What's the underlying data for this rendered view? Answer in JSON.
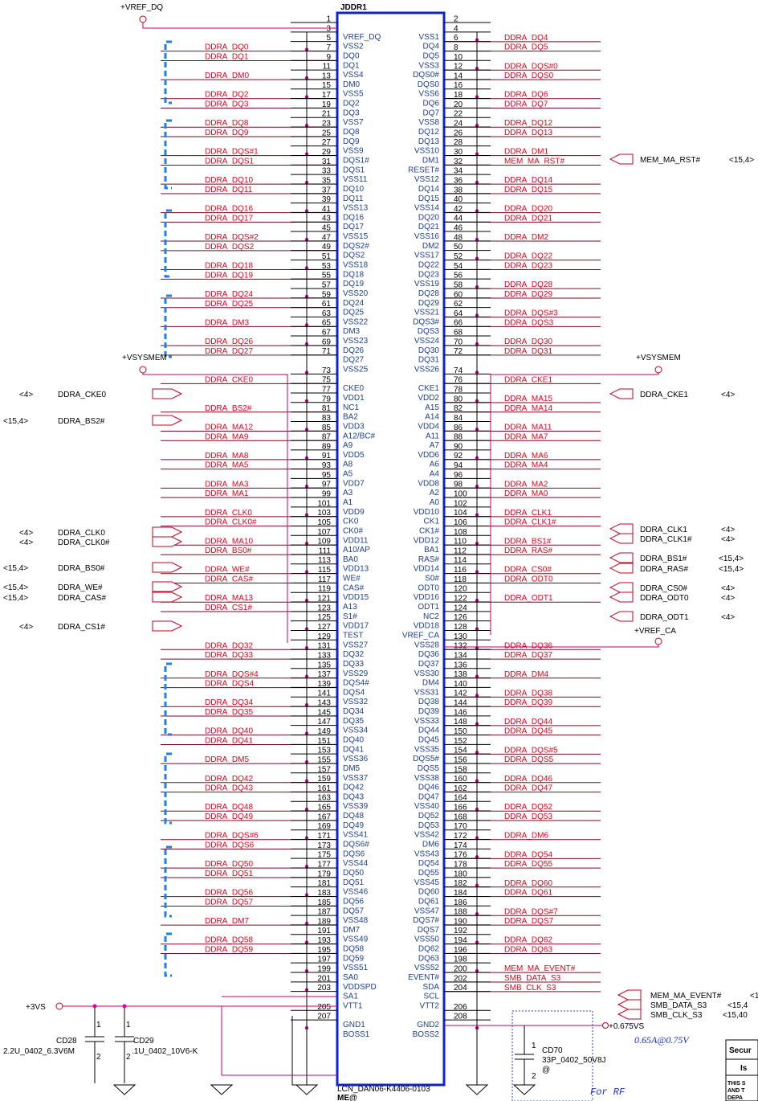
{
  "connector": {
    "refdes": "JDDR1",
    "part": "LCN_DAN06-K4406-0103",
    "variant": "ME@"
  },
  "top_left_rail": "+VREF_DQ",
  "left_pins": [
    {
      "num": "1",
      "name": "",
      "net": ""
    },
    {
      "num": "3",
      "name": "VREF_DQ",
      "net": ""
    },
    {
      "num": "5",
      "name": "VSS2",
      "net": "DDRA_DQ0"
    },
    {
      "num": "7",
      "name": "DQ0",
      "net": "DDRA_DQ1"
    },
    {
      "num": "9",
      "name": "DQ1",
      "net": ""
    },
    {
      "num": "11",
      "name": "VSS4",
      "net": "DDRA_DM0"
    },
    {
      "num": "13",
      "name": "DM0",
      "net": ""
    },
    {
      "num": "15",
      "name": "VSS5",
      "net": "DDRA_DQ2"
    },
    {
      "num": "17",
      "name": "DQ2",
      "net": "DDRA_DQ3"
    },
    {
      "num": "19",
      "name": "DQ3",
      "net": ""
    },
    {
      "num": "21",
      "name": "VSS7",
      "net": "DDRA_DQ8"
    },
    {
      "num": "23",
      "name": "DQ8",
      "net": "DDRA_DQ9"
    },
    {
      "num": "25",
      "name": "DQ9",
      "net": ""
    },
    {
      "num": "27",
      "name": "VSS9",
      "net": "DDRA_DQS#1"
    },
    {
      "num": "29",
      "name": "DQS1#",
      "net": "DDRA_DQS1"
    },
    {
      "num": "31",
      "name": "DQS1",
      "net": ""
    },
    {
      "num": "33",
      "name": "VSS11",
      "net": "DDRA_DQ10"
    },
    {
      "num": "35",
      "name": "DQ10",
      "net": "DDRA_DQ11"
    },
    {
      "num": "37",
      "name": "DQ11",
      "net": ""
    },
    {
      "num": "39",
      "name": "VSS13",
      "net": "DDRA_DQ16"
    },
    {
      "num": "41",
      "name": "DQ16",
      "net": "DDRA_DQ17"
    },
    {
      "num": "43",
      "name": "DQ17",
      "net": ""
    },
    {
      "num": "45",
      "name": "VSS15",
      "net": "DDRA_DQS#2"
    },
    {
      "num": "47",
      "name": "DQS2#",
      "net": "DDRA_DQS2"
    },
    {
      "num": "49",
      "name": "DQS2",
      "net": ""
    },
    {
      "num": "51",
      "name": "VSS18",
      "net": "DDRA_DQ18"
    },
    {
      "num": "53",
      "name": "DQ18",
      "net": "DDRA_DQ19"
    },
    {
      "num": "55",
      "name": "DQ19",
      "net": ""
    },
    {
      "num": "57",
      "name": "VSS20",
      "net": "DDRA_DQ24"
    },
    {
      "num": "59",
      "name": "DQ24",
      "net": "DDRA_DQ25"
    },
    {
      "num": "61",
      "name": "DQ25",
      "net": ""
    },
    {
      "num": "63",
      "name": "VSS22",
      "net": "DDRA_DM3"
    },
    {
      "num": "65",
      "name": "DM3",
      "net": ""
    },
    {
      "num": "67",
      "name": "VSS23",
      "net": "DDRA_DQ26"
    },
    {
      "num": "69",
      "name": "DQ26",
      "net": "DDRA_DQ27"
    },
    {
      "num": "71",
      "name": "DQ27",
      "net": ""
    },
    {
      "num": "",
      "name": "VSS25",
      "net": ""
    },
    {
      "num": "73",
      "name": "",
      "net": "DDRA_CKE0"
    },
    {
      "num": "75",
      "name": "CKE0",
      "net": ""
    },
    {
      "num": "77",
      "name": "VDD1",
      "net": ""
    },
    {
      "num": "79",
      "name": "NC1",
      "net": "DDRA_BS2#"
    },
    {
      "num": "81",
      "name": "BA2",
      "net": ""
    },
    {
      "num": "83",
      "name": "VDD3",
      "net": "DDRA_MA12"
    },
    {
      "num": "85",
      "name": "A12/BC#",
      "net": "DDRA_MA9"
    },
    {
      "num": "87",
      "name": "A9",
      "net": ""
    },
    {
      "num": "89",
      "name": "VDD5",
      "net": "DDRA_MA8"
    },
    {
      "num": "91",
      "name": "A8",
      "net": "DDRA_MA5"
    },
    {
      "num": "93",
      "name": "A5",
      "net": ""
    },
    {
      "num": "95",
      "name": "VDD7",
      "net": "DDRA_MA3"
    },
    {
      "num": "97",
      "name": "A3",
      "net": "DDRA_MA1"
    },
    {
      "num": "99",
      "name": "A1",
      "net": ""
    },
    {
      "num": "101",
      "name": "VDD9",
      "net": "DDRA_CLK0"
    },
    {
      "num": "103",
      "name": "CK0",
      "net": "DDRA_CLK0#"
    },
    {
      "num": "105",
      "name": "CK0#",
      "net": ""
    },
    {
      "num": "107",
      "name": "VDD11",
      "net": "DDRA_MA10"
    },
    {
      "num": "109",
      "name": "A10/AP",
      "net": "DDRA_BS0#"
    },
    {
      "num": "111",
      "name": "BA0",
      "net": ""
    },
    {
      "num": "113",
      "name": "VDD13",
      "net": "DDRA_WE#"
    },
    {
      "num": "115",
      "name": "WE#",
      "net": "DDRA_CAS#"
    },
    {
      "num": "117",
      "name": "CAS#",
      "net": ""
    },
    {
      "num": "119",
      "name": "VDD15",
      "net": "DDRA_MA13"
    },
    {
      "num": "121",
      "name": "A13",
      "net": "DDRA_CS1#"
    },
    {
      "num": "123",
      "name": "S1#",
      "net": ""
    },
    {
      "num": "125",
      "name": "VDD17",
      "net": ""
    },
    {
      "num": "127",
      "name": "TEST",
      "net": ""
    },
    {
      "num": "129",
      "name": "VSS27",
      "net": "DDRA_DQ32"
    },
    {
      "num": "131",
      "name": "DQ32",
      "net": "DDRA_DQ33"
    },
    {
      "num": "133",
      "name": "DQ33",
      "net": ""
    },
    {
      "num": "135",
      "name": "VSS29",
      "net": "DDRA_DQS#4"
    },
    {
      "num": "137",
      "name": "DQS4#",
      "net": "DDRA_DQS4"
    },
    {
      "num": "139",
      "name": "DQS4",
      "net": ""
    },
    {
      "num": "141",
      "name": "VSS32",
      "net": "DDRA_DQ34"
    },
    {
      "num": "143",
      "name": "DQ34",
      "net": "DDRA_DQ35"
    },
    {
      "num": "145",
      "name": "DQ35",
      "net": ""
    },
    {
      "num": "147",
      "name": "VSS34",
      "net": "DDRA_DQ40"
    },
    {
      "num": "149",
      "name": "DQ40",
      "net": "DDRA_DQ41"
    },
    {
      "num": "151",
      "name": "DQ41",
      "net": ""
    },
    {
      "num": "153",
      "name": "VSS36",
      "net": "DDRA_DM5"
    },
    {
      "num": "155",
      "name": "DM5",
      "net": ""
    },
    {
      "num": "157",
      "name": "VSS37",
      "net": "DDRA_DQ42"
    },
    {
      "num": "159",
      "name": "DQ42",
      "net": "DDRA_DQ43"
    },
    {
      "num": "161",
      "name": "DQ43",
      "net": ""
    },
    {
      "num": "163",
      "name": "VSS39",
      "net": "DDRA_DQ48"
    },
    {
      "num": "165",
      "name": "DQ48",
      "net": "DDRA_DQ49"
    },
    {
      "num": "167",
      "name": "DQ49",
      "net": ""
    },
    {
      "num": "169",
      "name": "VSS41",
      "net": "DDRA_DQS#6"
    },
    {
      "num": "171",
      "name": "DQS6#",
      "net": "DDRA_DQS6"
    },
    {
      "num": "173",
      "name": "DQS6",
      "net": ""
    },
    {
      "num": "175",
      "name": "VSS44",
      "net": "DDRA_DQ50"
    },
    {
      "num": "177",
      "name": "DQ50",
      "net": "DDRA_DQ51"
    },
    {
      "num": "179",
      "name": "DQ51",
      "net": ""
    },
    {
      "num": "181",
      "name": "VSS46",
      "net": "DDRA_DQ56"
    },
    {
      "num": "183",
      "name": "DQ56",
      "net": "DDRA_DQ57"
    },
    {
      "num": "185",
      "name": "DQ57",
      "net": ""
    },
    {
      "num": "187",
      "name": "VSS48",
      "net": "DDRA_DM7"
    },
    {
      "num": "189",
      "name": "DM7",
      "net": ""
    },
    {
      "num": "191",
      "name": "VSS49",
      "net": "DDRA_DQ58"
    },
    {
      "num": "193",
      "name": "DQ58",
      "net": "DDRA_DQ59"
    },
    {
      "num": "195",
      "name": "DQ59",
      "net": ""
    },
    {
      "num": "197",
      "name": "VSS51",
      "net": ""
    },
    {
      "num": "199",
      "name": "SA0",
      "net": ""
    },
    {
      "num": "201",
      "name": "VDDSPD",
      "net": ""
    },
    {
      "num": "203",
      "name": "SA1",
      "net": ""
    },
    {
      "num": "",
      "name": "VTT1",
      "net": ""
    },
    {
      "num": "205",
      "name": "",
      "net": ""
    },
    {
      "num": "207",
      "name": "GND1",
      "net": ""
    },
    {
      "num": "",
      "name": "BOSS1",
      "net": ""
    }
  ],
  "right_pins": [
    {
      "num": "2",
      "name": "",
      "net": ""
    },
    {
      "num": "4",
      "name": "VSS1",
      "net": "DDRA_DQ4"
    },
    {
      "num": "6",
      "name": "DQ4",
      "net": "DDRA_DQ5"
    },
    {
      "num": "8",
      "name": "DQ5",
      "net": ""
    },
    {
      "num": "10",
      "name": "VSS3",
      "net": "DDRA_DQS#0"
    },
    {
      "num": "12",
      "name": "DQS0#",
      "net": "DDRA_DQS0"
    },
    {
      "num": "14",
      "name": "DQS0",
      "net": ""
    },
    {
      "num": "16",
      "name": "VSS6",
      "net": "DDRA_DQ6"
    },
    {
      "num": "18",
      "name": "DQ6",
      "net": "DDRA_DQ7"
    },
    {
      "num": "20",
      "name": "DQ7",
      "net": ""
    },
    {
      "num": "22",
      "name": "VSS8",
      "net": "DDRA_DQ12"
    },
    {
      "num": "24",
      "name": "DQ12",
      "net": "DDRA_DQ13"
    },
    {
      "num": "26",
      "name": "DQ13",
      "net": ""
    },
    {
      "num": "28",
      "name": "VSS10",
      "net": "DDRA_DM1"
    },
    {
      "num": "30",
      "name": "DM1",
      "net": "MEM_MA_RST#"
    },
    {
      "num": "32",
      "name": "RESET#",
      "net": ""
    },
    {
      "num": "34",
      "name": "VSS12",
      "net": "DDRA_DQ14"
    },
    {
      "num": "36",
      "name": "DQ14",
      "net": "DDRA_DQ15"
    },
    {
      "num": "38",
      "name": "DQ15",
      "net": ""
    },
    {
      "num": "40",
      "name": "VSS14",
      "net": "DDRA_DQ20"
    },
    {
      "num": "42",
      "name": "DQ20",
      "net": "DDRA_DQ21"
    },
    {
      "num": "44",
      "name": "DQ21",
      "net": ""
    },
    {
      "num": "46",
      "name": "VSS16",
      "net": "DDRA_DM2"
    },
    {
      "num": "48",
      "name": "DM2",
      "net": ""
    },
    {
      "num": "50",
      "name": "VSS17",
      "net": "DDRA_DQ22"
    },
    {
      "num": "52",
      "name": "DQ22",
      "net": "DDRA_DQ23"
    },
    {
      "num": "54",
      "name": "DQ23",
      "net": ""
    },
    {
      "num": "56",
      "name": "VSS19",
      "net": "DDRA_DQ28"
    },
    {
      "num": "58",
      "name": "DQ28",
      "net": "DDRA_DQ29"
    },
    {
      "num": "60",
      "name": "DQ29",
      "net": ""
    },
    {
      "num": "62",
      "name": "VSS21",
      "net": "DDRA_DQS#3"
    },
    {
      "num": "64",
      "name": "DQS3#",
      "net": "DDRA_DQS3"
    },
    {
      "num": "66",
      "name": "DQS3",
      "net": ""
    },
    {
      "num": "68",
      "name": "VSS24",
      "net": "DDRA_DQ30"
    },
    {
      "num": "70",
      "name": "DQ30",
      "net": "DDRA_DQ31"
    },
    {
      "num": "72",
      "name": "DQ31",
      "net": ""
    },
    {
      "num": "",
      "name": "VSS26",
      "net": ""
    },
    {
      "num": "74",
      "name": "",
      "net": "DDRA_CKE1"
    },
    {
      "num": "76",
      "name": "CKE1",
      "net": ""
    },
    {
      "num": "78",
      "name": "VDD2",
      "net": "DDRA_MA15"
    },
    {
      "num": "80",
      "name": "A15",
      "net": "DDRA_MA14"
    },
    {
      "num": "82",
      "name": "A14",
      "net": ""
    },
    {
      "num": "84",
      "name": "VDD4",
      "net": "DDRA_MA11"
    },
    {
      "num": "86",
      "name": "A11",
      "net": "DDRA_MA7"
    },
    {
      "num": "88",
      "name": "A7",
      "net": ""
    },
    {
      "num": "90",
      "name": "VDD6",
      "net": "DDRA_MA6"
    },
    {
      "num": "92",
      "name": "A6",
      "net": "DDRA_MA4"
    },
    {
      "num": "94",
      "name": "A4",
      "net": ""
    },
    {
      "num": "96",
      "name": "VDD8",
      "net": "DDRA_MA2"
    },
    {
      "num": "98",
      "name": "A2",
      "net": "DDRA_MA0"
    },
    {
      "num": "100",
      "name": "A0",
      "net": ""
    },
    {
      "num": "102",
      "name": "VDD10",
      "net": "DDRA_CLK1"
    },
    {
      "num": "104",
      "name": "CK1",
      "net": "DDRA_CLK1#"
    },
    {
      "num": "106",
      "name": "CK1#",
      "net": ""
    },
    {
      "num": "108",
      "name": "VDD12",
      "net": "DDRA_BS1#"
    },
    {
      "num": "110",
      "name": "BA1",
      "net": "DDRA_RAS#"
    },
    {
      "num": "112",
      "name": "RAS#",
      "net": ""
    },
    {
      "num": "114",
      "name": "VDD14",
      "net": "DDRA_CS0#"
    },
    {
      "num": "116",
      "name": "S0#",
      "net": "DDRA_ODT0"
    },
    {
      "num": "118",
      "name": "ODT0",
      "net": ""
    },
    {
      "num": "120",
      "name": "VDD16",
      "net": "DDRA_ODT1"
    },
    {
      "num": "122",
      "name": "ODT1",
      "net": ""
    },
    {
      "num": "124",
      "name": "NC2",
      "net": ""
    },
    {
      "num": "126",
      "name": "VDD18",
      "net": ""
    },
    {
      "num": "128",
      "name": "VREF_CA",
      "net": ""
    },
    {
      "num": "130",
      "name": "VSS28",
      "net": "DDRA_DQ36"
    },
    {
      "num": "132",
      "name": "DQ36",
      "net": "DDRA_DQ37"
    },
    {
      "num": "134",
      "name": "DQ37",
      "net": ""
    },
    {
      "num": "136",
      "name": "VSS30",
      "net": "DDRA_DM4"
    },
    {
      "num": "138",
      "name": "DM4",
      "net": ""
    },
    {
      "num": "140",
      "name": "VSS31",
      "net": "DDRA_DQ38"
    },
    {
      "num": "142",
      "name": "DQ38",
      "net": "DDRA_DQ39"
    },
    {
      "num": "144",
      "name": "DQ39",
      "net": ""
    },
    {
      "num": "146",
      "name": "VSS33",
      "net": "DDRA_DQ44"
    },
    {
      "num": "148",
      "name": "DQ44",
      "net": "DDRA_DQ45"
    },
    {
      "num": "150",
      "name": "DQ45",
      "net": ""
    },
    {
      "num": "152",
      "name": "VSS35",
      "net": "DDRA_DQS#5"
    },
    {
      "num": "154",
      "name": "DQS5#",
      "net": "DDRA_DQS5"
    },
    {
      "num": "156",
      "name": "DQS5",
      "net": ""
    },
    {
      "num": "158",
      "name": "VSS38",
      "net": "DDRA_DQ46"
    },
    {
      "num": "160",
      "name": "DQ46",
      "net": "DDRA_DQ47"
    },
    {
      "num": "162",
      "name": "DQ47",
      "net": ""
    },
    {
      "num": "164",
      "name": "VSS40",
      "net": "DDRA_DQ52"
    },
    {
      "num": "166",
      "name": "DQ52",
      "net": "DDRA_DQ53"
    },
    {
      "num": "168",
      "name": "DQ53",
      "net": ""
    },
    {
      "num": "170",
      "name": "VSS42",
      "net": "DDRA_DM6"
    },
    {
      "num": "172",
      "name": "DM6",
      "net": ""
    },
    {
      "num": "174",
      "name": "VSS43",
      "net": "DDRA_DQ54"
    },
    {
      "num": "176",
      "name": "DQ54",
      "net": "DDRA_DQ55"
    },
    {
      "num": "178",
      "name": "DQ55",
      "net": ""
    },
    {
      "num": "180",
      "name": "VSS45",
      "net": "DDRA_DQ60"
    },
    {
      "num": "182",
      "name": "DQ60",
      "net": "DDRA_DQ61"
    },
    {
      "num": "184",
      "name": "DQ61",
      "net": ""
    },
    {
      "num": "186",
      "name": "VSS47",
      "net": "DDRA_DQS#7"
    },
    {
      "num": "188",
      "name": "DQS7#",
      "net": "DDRA_DQS7"
    },
    {
      "num": "190",
      "name": "DQS7",
      "net": ""
    },
    {
      "num": "192",
      "name": "VSS50",
      "net": "DDRA_DQ62"
    },
    {
      "num": "194",
      "name": "DQ62",
      "net": "DDRA_DQ63"
    },
    {
      "num": "196",
      "name": "DQ63",
      "net": ""
    },
    {
      "num": "198",
      "name": "VSS52",
      "net": "MEM_MA_EVENT#"
    },
    {
      "num": "200",
      "name": "EVENT#",
      "net": "SMB_DATA_S3"
    },
    {
      "num": "202",
      "name": "SDA",
      "net": "SMB_CLK_S3"
    },
    {
      "num": "204",
      "name": "SCL",
      "net": ""
    },
    {
      "num": "",
      "name": "VTT2",
      "net": ""
    },
    {
      "num": "206",
      "name": "",
      "net": ""
    },
    {
      "num": "208",
      "name": "GND2",
      "net": ""
    },
    {
      "num": "",
      "name": "BOSS2",
      "net": ""
    }
  ],
  "rails": {
    "vsysmem_left": "+VSYSMEM",
    "vsysmem_right": "+VSYSMEM",
    "vref_ca": "+VREF_CA",
    "p3vs": "+3VS",
    "p0675vs": "+0.675VS"
  },
  "left_ports": [
    {
      "ref": "<4>",
      "name": "DDRA_CKE0"
    },
    {
      "ref": "<15,4>",
      "name": "DDRA_BS2#"
    },
    {
      "ref": "<4>",
      "name": "DDRA_CLK0"
    },
    {
      "ref": "<4>",
      "name": "DDRA_CLK0#"
    },
    {
      "ref": "<15,4>",
      "name": "DDRA_BS0#"
    },
    {
      "ref": "<15,4>",
      "name": "DDRA_WE#"
    },
    {
      "ref": "<15,4>",
      "name": "DDRA_CAS#"
    },
    {
      "ref": "<4>",
      "name": "DDRA_CS1#"
    }
  ],
  "right_ports": [
    {
      "name": "MEM_MA_RST#",
      "ref": "<15,4>"
    },
    {
      "name": "DDRA_CKE1",
      "ref": "<4>"
    },
    {
      "name": "DDRA_CLK1",
      "ref": "<4>"
    },
    {
      "name": "DDRA_CLK1#",
      "ref": "<4>"
    },
    {
      "name": "DDRA_BS1#",
      "ref": "<15,4>"
    },
    {
      "name": "DDRA_RAS#",
      "ref": "<15,4>"
    },
    {
      "name": "DDRA_CS0#",
      "ref": "<4>"
    },
    {
      "name": "DDRA_ODT0",
      "ref": "<4>"
    },
    {
      "name": "DDRA_ODT1",
      "ref": "<4>"
    },
    {
      "name": "MEM_MA_EVENT#",
      "ref": "<1"
    },
    {
      "name": "SMB_DATA_S3",
      "ref": "<15,4"
    },
    {
      "name": "SMB_CLK_S3",
      "ref": "<15,40"
    }
  ],
  "caps": {
    "cd28": {
      "ref": "CD28",
      "value": "2.2U_0402_6.3V6M",
      "pin1": "1",
      "pin2": "2"
    },
    "cd29": {
      "ref": "CD29",
      "value": ".1U_0402_10V6-K",
      "pin1": "1",
      "pin2": "2"
    },
    "cd70": {
      "ref": "CD70",
      "value": "33P_0402_50V8J",
      "variant": "@",
      "pin1": "1",
      "pin2": "2"
    }
  },
  "vtt_note": "0.65A@0.75V",
  "rf_note": "For RF",
  "title_block": {
    "security": "Secur",
    "issued": "Is",
    "legal_1": "THIS S",
    "legal_2": "AND T",
    "legal_3": "DEPA"
  }
}
